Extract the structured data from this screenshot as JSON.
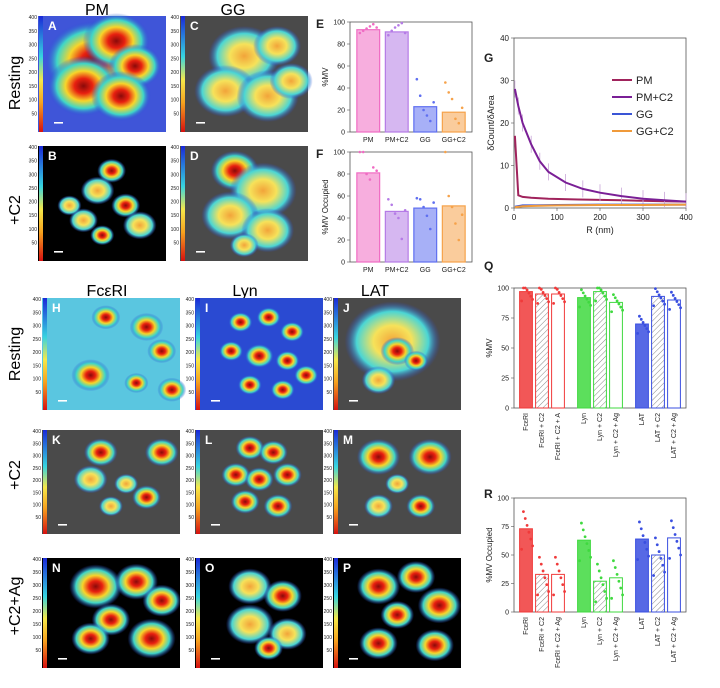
{
  "headers": {
    "top": [
      "PM",
      "GG"
    ],
    "bottom": [
      "FcεRI",
      "Lyn",
      "LAT"
    ],
    "rows_top": [
      "Resting",
      "+C2"
    ],
    "rows_bottom": [
      "Resting",
      "+C2",
      "+C2+Ag"
    ]
  },
  "maps": [
    {
      "id": "A",
      "ticks": [
        "400",
        "350",
        "300",
        "250",
        "200",
        "150",
        "100",
        "50"
      ]
    },
    {
      "id": "B",
      "ticks": [
        "400",
        "350",
        "300",
        "250",
        "200",
        "150",
        "100",
        "50"
      ]
    },
    {
      "id": "C",
      "ticks": [
        "400",
        "350",
        "300",
        "250",
        "200",
        "150",
        "100",
        "50"
      ]
    },
    {
      "id": "D",
      "ticks": [
        "400",
        "350",
        "300",
        "250",
        "200",
        "150",
        "100",
        "50"
      ]
    },
    {
      "id": "H",
      "ticks": [
        "400",
        "350",
        "300",
        "250",
        "200",
        "150",
        "100",
        "50"
      ]
    },
    {
      "id": "I",
      "ticks": [
        "400",
        "350",
        "300",
        "250",
        "200",
        "150",
        "100",
        "50"
      ]
    },
    {
      "id": "J",
      "ticks": [
        "400",
        "350",
        "300",
        "250",
        "200",
        "150",
        "100",
        "50"
      ]
    },
    {
      "id": "K",
      "ticks": [
        "400",
        "350",
        "300",
        "250",
        "200",
        "150",
        "100",
        "50"
      ]
    },
    {
      "id": "L",
      "ticks": [
        "400",
        "350",
        "300",
        "250",
        "200",
        "150",
        "100",
        "50"
      ]
    },
    {
      "id": "M",
      "ticks": [
        "400",
        "350",
        "300",
        "250",
        "200",
        "150",
        "100",
        "50"
      ]
    },
    {
      "id": "N",
      "ticks": [
        "400",
        "350",
        "300",
        "250",
        "200",
        "150",
        "100",
        "50"
      ]
    },
    {
      "id": "O",
      "ticks": [
        "400",
        "350",
        "300",
        "250",
        "200",
        "150",
        "100",
        "50"
      ]
    },
    {
      "id": "P",
      "ticks": [
        "400",
        "350",
        "300",
        "250",
        "200",
        "150",
        "100",
        "50"
      ]
    }
  ],
  "chart_data": [
    {
      "id": "E",
      "type": "bar",
      "ylabel": "%MV",
      "ylim": [
        0,
        100
      ],
      "yticks": [
        "0",
        "20",
        "40",
        "60",
        "80",
        "100"
      ],
      "categories": [
        "PM",
        "PM+C2",
        "GG",
        "GG+C2"
      ],
      "values": [
        93,
        91,
        23,
        18
      ],
      "colors": [
        "#f06bc3",
        "#b57be6",
        "#5f6ff0",
        "#f6a24a"
      ],
      "points": [
        [
          90,
          92,
          94,
          96,
          98,
          95
        ],
        [
          88,
          92,
          95,
          97,
          99,
          90
        ],
        [
          48,
          33,
          20,
          15,
          10,
          27
        ],
        [
          45,
          36,
          30,
          12,
          8,
          22
        ]
      ]
    },
    {
      "id": "F",
      "type": "bar",
      "ylabel": "%MV Occupied",
      "ylim": [
        0,
        100
      ],
      "yticks": [
        "0",
        "20",
        "40",
        "60",
        "80",
        "100"
      ],
      "categories": [
        "PM",
        "PM+C2",
        "GG",
        "GG+C2"
      ],
      "values": [
        81,
        46,
        49,
        51
      ],
      "colors": [
        "#f06bc3",
        "#b57be6",
        "#5f6ff0",
        "#f6a24a"
      ],
      "points": [
        [
          100,
          100,
          80,
          75,
          86,
          83
        ],
        [
          57,
          52,
          44,
          40,
          21,
          47
        ],
        [
          58,
          57,
          50,
          42,
          30,
          54
        ],
        [
          100,
          60,
          50,
          35,
          20,
          43
        ]
      ]
    },
    {
      "id": "G",
      "type": "line",
      "panel": "G",
      "xlabel": "R (nm)",
      "ylabel": "δCount/δArea",
      "xlim": [
        0,
        400
      ],
      "ylim": [
        0,
        40
      ],
      "xticks": [
        "0",
        "100",
        "200",
        "300",
        "400"
      ],
      "yticks": [
        "0",
        "10",
        "20",
        "30",
        "40"
      ],
      "series": [
        {
          "name": "PM",
          "color": "#a0235c",
          "x": [
            2,
            10,
            20,
            40,
            80,
            150,
            250,
            350,
            400
          ],
          "y": [
            17,
            3,
            2.6,
            2.4,
            2.2,
            2,
            1.8,
            1.6,
            1.5
          ]
        },
        {
          "name": "PM+C2",
          "color": "#7a1f96",
          "x": [
            2,
            10,
            20,
            40,
            60,
            80,
            120,
            160,
            200,
            250,
            300,
            350,
            400
          ],
          "y": [
            28,
            24,
            20,
            15,
            11,
            8.5,
            6,
            4.5,
            3.6,
            2.8,
            2.2,
            1.8,
            1.5
          ]
        },
        {
          "name": "GG",
          "color": "#3a55d6",
          "x": [
            2,
            20,
            50,
            100,
            200,
            300,
            400
          ],
          "y": [
            0.3,
            0.6,
            0.6,
            0.7,
            0.8,
            0.8,
            0.8
          ]
        },
        {
          "name": "GG+C2",
          "color": "#f09a3a",
          "x": [
            2,
            20,
            50,
            100,
            200,
            300,
            400
          ],
          "y": [
            0.2,
            0.4,
            0.5,
            0.6,
            0.7,
            0.7,
            0.8
          ]
        }
      ]
    },
    {
      "id": "Q",
      "type": "bar",
      "ylabel": "%MV",
      "ylim": [
        0,
        100
      ],
      "yticks": [
        "0",
        "25",
        "50",
        "75",
        "100"
      ],
      "categories": [
        "FcεRI",
        "FcεRI + C2",
        "FcεRI + C2 + A",
        "Lyn",
        "Lyn + C2",
        "Lyn + C2 + Ag",
        "LAT",
        "LAT + C2",
        "LAT + C2 + Ag"
      ],
      "values": [
        97,
        95,
        95,
        92,
        97,
        88,
        70,
        93,
        90
      ],
      "colors": [
        "#f03a3a",
        "#f03a3a",
        "#f03a3a",
        "#3fd93f",
        "#3fd93f",
        "#3fd93f",
        "#3a4fe0",
        "#3a4fe0",
        "#3a4fe0"
      ],
      "hatch": [
        false,
        true,
        false,
        false,
        true,
        false,
        false,
        true,
        false
      ]
    },
    {
      "id": "R",
      "type": "bar",
      "ylabel": "%MV Occupied",
      "ylim": [
        0,
        100
      ],
      "yticks": [
        "0",
        "25",
        "50",
        "75",
        "100"
      ],
      "categories": [
        "FcεRI",
        "FcεRI + C2",
        "FcεRI + C2 + Ag",
        "Lyn",
        "Lyn + C2",
        "Lyn + C2 + Ag",
        "LAT",
        "LAT + C2",
        "LAT + C2 + Ag"
      ],
      "values": [
        73,
        33,
        33,
        63,
        27,
        30,
        64,
        50,
        65
      ],
      "colors": [
        "#f03a3a",
        "#f03a3a",
        "#f03a3a",
        "#3fd93f",
        "#3fd93f",
        "#3fd93f",
        "#3a4fe0",
        "#3a4fe0",
        "#3a4fe0"
      ],
      "hatch": [
        false,
        true,
        false,
        false,
        true,
        false,
        false,
        true,
        false
      ]
    }
  ]
}
